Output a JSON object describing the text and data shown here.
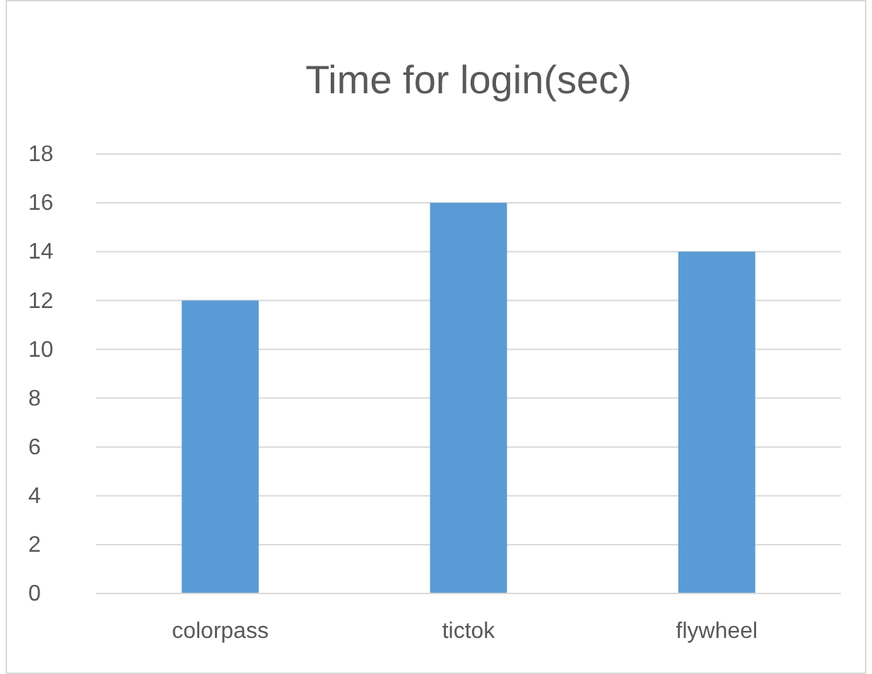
{
  "chart_data": {
    "type": "bar",
    "title": "Time for login(sec)",
    "categories": [
      "colorpass",
      "tictok",
      "flywheel"
    ],
    "values": [
      12,
      16,
      14
    ],
    "color": "#5b9bd5",
    "ylim": [
      0,
      18
    ],
    "yticks": [
      0,
      2,
      4,
      6,
      8,
      10,
      12,
      14,
      16,
      18
    ],
    "grid": "y"
  }
}
